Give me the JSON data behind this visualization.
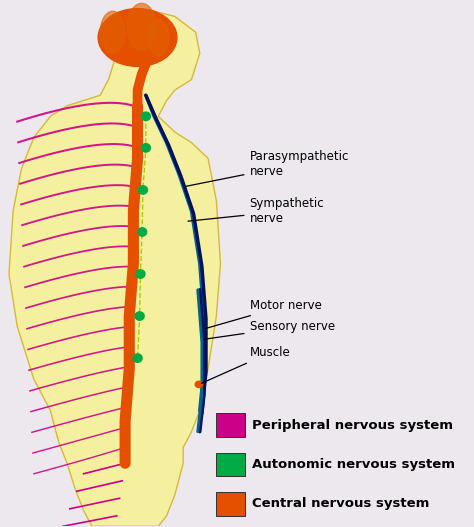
{
  "background_color": "#ede8ed",
  "legend_items": [
    {
      "color": "#e55000",
      "label": "Central nervous system"
    },
    {
      "color": "#00aa44",
      "label": "Autonomic nervous system"
    },
    {
      "color": "#cc0088",
      "label": "Peripheral nervous system"
    }
  ],
  "body_fill": "#f5f0a0",
  "body_edge": "#d4b840",
  "brain_color": "#e55000",
  "spine_color": "#e55000",
  "autonomic_color": "#ccaa00",
  "ganglion_color": "#00aa44",
  "para_color": "#006688",
  "symp_color": "#001060",
  "motor_color": "#001060",
  "sensory_color": "#006688",
  "periph_color": "#cc0088",
  "figsize": [
    4.74,
    5.27
  ],
  "dpi": 100
}
